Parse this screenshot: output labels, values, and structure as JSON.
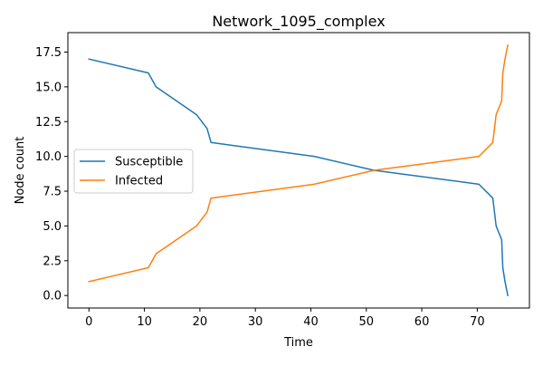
{
  "chart_data": {
    "type": "line",
    "title": "Network_1095_complex",
    "xlabel": "Time",
    "ylabel": "Node count",
    "xlim": [
      -3.8,
      79.4
    ],
    "ylim": [
      -0.9,
      18.9
    ],
    "xticks": [
      0,
      10,
      20,
      30,
      40,
      50,
      60,
      70
    ],
    "yticks": [
      0.0,
      2.5,
      5.0,
      7.5,
      10.0,
      12.5,
      15.0,
      17.5
    ],
    "ytick_labels": [
      "0.0",
      "2.5",
      "5.0",
      "7.5",
      "10.0",
      "12.5",
      "15.0",
      "17.5"
    ],
    "grid": false,
    "legend_position": "center-left",
    "series": [
      {
        "name": "Susceptible",
        "color": "#1f77b4",
        "x": [
          0,
          10.7,
          12.1,
          19.4,
          21.3,
          22.0,
          40.6,
          51.4,
          70.3,
          72.8,
          73.4,
          74.4,
          74.6,
          75.0,
          75.5
        ],
        "y": [
          17,
          16,
          15,
          13,
          12,
          11,
          10,
          9,
          8,
          7,
          5,
          4,
          2,
          1,
          0
        ]
      },
      {
        "name": "Infected",
        "color": "#ff7f0e",
        "x": [
          0,
          10.7,
          12.1,
          19.4,
          21.3,
          22.0,
          40.6,
          51.4,
          70.3,
          72.8,
          73.4,
          74.4,
          74.6,
          75.0,
          75.5
        ],
        "y": [
          1,
          2,
          3,
          5,
          6,
          7,
          8,
          9,
          10,
          11,
          13,
          14,
          16,
          17,
          18
        ]
      }
    ]
  }
}
